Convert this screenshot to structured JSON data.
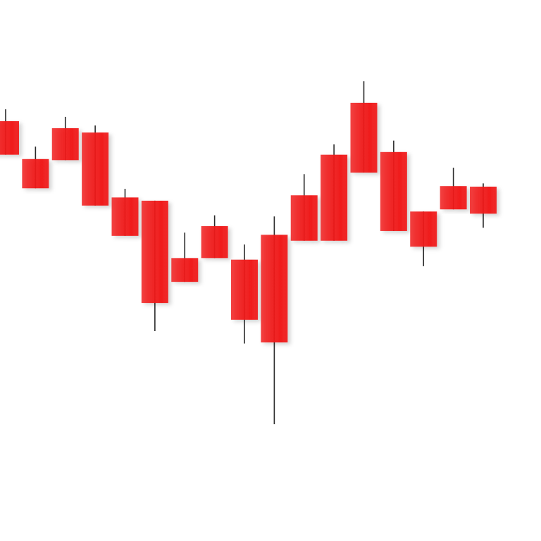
{
  "chart_data": {
    "type": "candlestick",
    "ylim": [
      0,
      100
    ],
    "series": [
      {
        "color": "#f01a1a",
        "wick_color": "#2a2a2a",
        "open": [
          77.6,
          70.6,
          76.3,
          75.5,
          63.5,
          62.9,
          52.3,
          58.2,
          52.0,
          56.6,
          63.9,
          71.4,
          81.0,
          71.9,
          60.9,
          65.6,
          65.5
        ],
        "high": [
          79.8,
          72.9,
          78.4,
          76.8,
          65.1,
          62.9,
          57.0,
          60.2,
          54.8,
          60.0,
          67.8,
          73.3,
          85.0,
          74.0,
          60.9,
          69.0,
          66.1
        ],
        "low": [
          71.4,
          65.2,
          70.4,
          62.0,
          56.4,
          38.8,
          47.9,
          52.3,
          36.5,
          21.6,
          55.5,
          55.5,
          68.1,
          57.3,
          50.8,
          61.3,
          57.9
        ],
        "close": [
          71.4,
          65.2,
          70.4,
          62.0,
          56.4,
          44.0,
          47.9,
          52.3,
          40.9,
          36.7,
          55.5,
          55.5,
          68.1,
          57.3,
          54.4,
          61.3,
          60.5
        ]
      }
    ]
  }
}
